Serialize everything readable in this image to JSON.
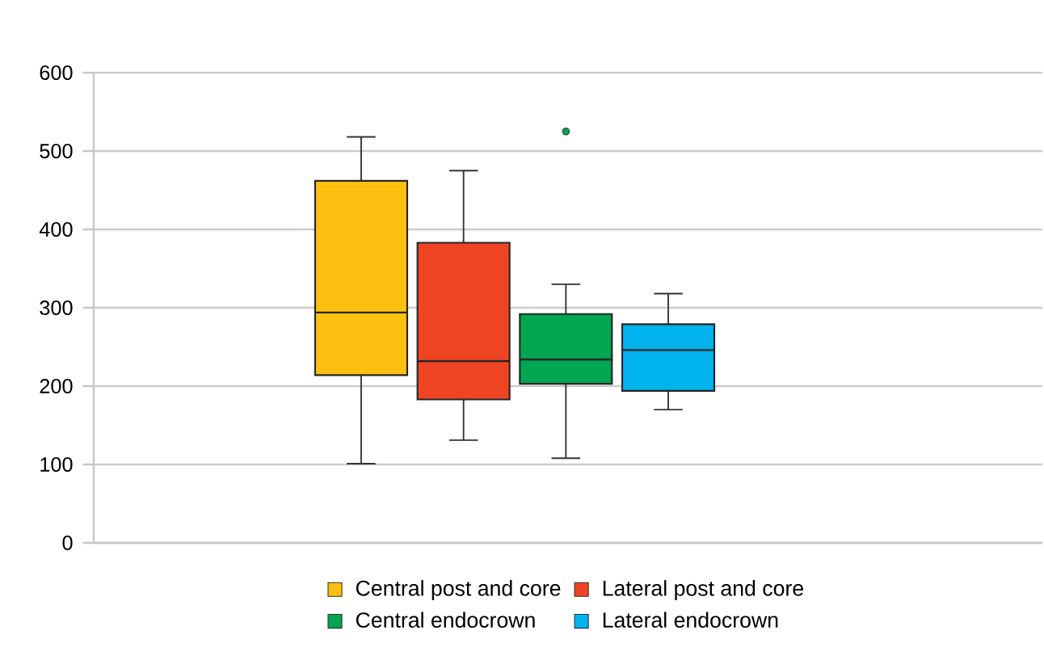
{
  "chart_data": {
    "type": "box",
    "categories": [
      null
    ],
    "ylim": [
      0,
      600
    ],
    "yticks": [
      0,
      100,
      200,
      300,
      400,
      500,
      600
    ],
    "grid": "y",
    "legend": "bottom",
    "series": [
      {
        "name": "Central post and core",
        "color": "#fec010",
        "boxes": [
          {
            "low": 101,
            "q1": 214,
            "median": 294,
            "q3": 462,
            "high": 518
          }
        ]
      },
      {
        "name": "Lateral post and core",
        "color": "#ef4423",
        "boxes": [
          {
            "low": 131,
            "q1": 183,
            "median": 232,
            "q3": 383,
            "high": 475
          }
        ]
      },
      {
        "name": "Central endocrown",
        "color": "#00a650",
        "boxes": [
          {
            "low": 108,
            "q1": 203,
            "median": 234,
            "q3": 292,
            "high": 330,
            "outliers": [
              525
            ]
          }
        ]
      },
      {
        "name": "Lateral endocrown",
        "color": "#00b2ed",
        "boxes": [
          {
            "low": 170,
            "q1": 194,
            "median": 246,
            "q3": 279,
            "high": 318
          }
        ]
      }
    ]
  }
}
